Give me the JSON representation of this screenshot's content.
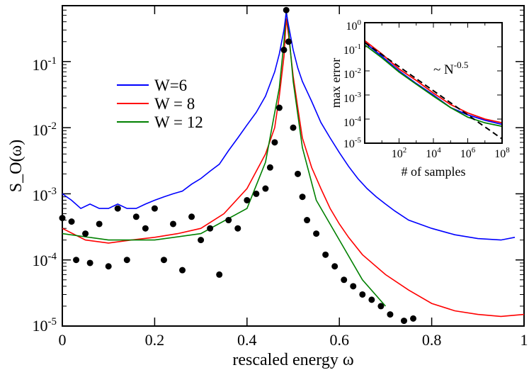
{
  "chart_data": [
    {
      "type": "line",
      "title": "",
      "xlabel": "rescaled energy ω",
      "ylabel": "S_O(ω)",
      "xlim": [
        0,
        1
      ],
      "ylim": [
        1e-05,
        0.7
      ],
      "yscale": "log",
      "x_ticks": [
        0,
        0.2,
        0.4,
        0.6,
        0.8,
        1
      ],
      "x_tick_labels": [
        "0",
        "0.2",
        "0.4",
        "0.6",
        "0.8",
        "1"
      ],
      "y_ticks": [
        1e-05,
        0.0001,
        0.001,
        0.01,
        0.1
      ],
      "y_tick_labels": [
        {
          "base": "10",
          "exp": "-5"
        },
        {
          "base": "10",
          "exp": "-4"
        },
        {
          "base": "10",
          "exp": "-3"
        },
        {
          "base": "10",
          "exp": "-2"
        },
        {
          "base": "10",
          "exp": "-1"
        }
      ],
      "legend": [
        {
          "label": "W=6",
          "color": "#0000ff"
        },
        {
          "label": "W = 8",
          "color": "#ff0000"
        },
        {
          "label": "W = 12",
          "color": "#008000"
        }
      ],
      "series": [
        {
          "name": "W=6",
          "color": "#0000ff",
          "x": [
            0,
            0.02,
            0.04,
            0.06,
            0.08,
            0.1,
            0.12,
            0.14,
            0.16,
            0.18,
            0.2,
            0.22,
            0.24,
            0.26,
            0.28,
            0.3,
            0.32,
            0.34,
            0.36,
            0.38,
            0.4,
            0.42,
            0.44,
            0.46,
            0.47,
            0.48,
            0.485,
            0.49,
            0.5,
            0.51,
            0.52,
            0.54,
            0.56,
            0.58,
            0.6,
            0.62,
            0.64,
            0.66,
            0.68,
            0.7,
            0.72,
            0.75,
            0.8,
            0.85,
            0.9,
            0.95,
            0.98
          ],
          "y": [
            0.001,
            0.0008,
            0.0006,
            0.0007,
            0.0006,
            0.0006,
            0.0007,
            0.0006,
            0.0006,
            0.0007,
            0.0008,
            0.0009,
            0.001,
            0.0011,
            0.0014,
            0.0017,
            0.0022,
            0.0028,
            0.0045,
            0.007,
            0.011,
            0.017,
            0.03,
            0.07,
            0.13,
            0.3,
            0.55,
            0.35,
            0.15,
            0.08,
            0.05,
            0.025,
            0.012,
            0.007,
            0.0042,
            0.0026,
            0.0017,
            0.0012,
            0.0009,
            0.0007,
            0.00055,
            0.0004,
            0.0003,
            0.00024,
            0.00021,
            0.0002,
            0.00022
          ]
        },
        {
          "name": "W = 8",
          "color": "#ff0000",
          "x": [
            0,
            0.05,
            0.1,
            0.15,
            0.2,
            0.25,
            0.3,
            0.35,
            0.4,
            0.44,
            0.46,
            0.47,
            0.48,
            0.485,
            0.49,
            0.5,
            0.51,
            0.52,
            0.54,
            0.56,
            0.58,
            0.6,
            0.62,
            0.65,
            0.7,
            0.75,
            0.8,
            0.85,
            0.9,
            0.95,
            1.0
          ],
          "y": [
            0.0003,
            0.0002,
            0.00018,
            0.0002,
            0.00022,
            0.00025,
            0.0003,
            0.0005,
            0.0012,
            0.004,
            0.01,
            0.03,
            0.12,
            0.45,
            0.25,
            0.06,
            0.02,
            0.007,
            0.0025,
            0.0012,
            0.0006,
            0.00035,
            0.00022,
            0.00012,
            6e-05,
            3.5e-05,
            2.2e-05,
            1.7e-05,
            1.5e-05,
            1.4e-05,
            1.5e-05
          ]
        },
        {
          "name": "W = 12",
          "color": "#008000",
          "x": [
            0,
            0.1,
            0.2,
            0.3,
            0.4,
            0.44,
            0.47,
            0.48,
            0.485,
            0.49,
            0.5,
            0.52,
            0.55,
            0.6,
            0.65,
            0.7
          ],
          "y": [
            0.00025,
            0.0002,
            0.0002,
            0.00025,
            0.0006,
            0.003,
            0.04,
            0.2,
            0.6,
            0.3,
            0.05,
            0.005,
            0.0008,
            0.0002,
            5e-05,
            2e-05
          ]
        },
        {
          "name": "markers",
          "color": "#000000",
          "marker": "circle",
          "x": [
            0.0,
            0.02,
            0.03,
            0.05,
            0.06,
            0.08,
            0.1,
            0.12,
            0.14,
            0.16,
            0.18,
            0.2,
            0.22,
            0.24,
            0.26,
            0.28,
            0.3,
            0.32,
            0.34,
            0.36,
            0.38,
            0.4,
            0.42,
            0.44,
            0.45,
            0.46,
            0.47,
            0.48,
            0.485,
            0.49,
            0.5,
            0.51,
            0.52,
            0.53,
            0.55,
            0.57,
            0.59,
            0.61,
            0.63,
            0.65,
            0.67,
            0.69,
            0.71,
            0.74,
            0.76
          ],
          "y": [
            0.00043,
            0.00038,
            0.0001,
            0.00025,
            9e-05,
            0.00035,
            8e-05,
            0.0006,
            0.0001,
            0.00045,
            0.0003,
            0.0006,
            0.0001,
            0.00035,
            7e-05,
            0.00045,
            0.0002,
            0.0003,
            6e-05,
            0.0004,
            0.0003,
            0.0008,
            0.001,
            0.0012,
            0.0025,
            0.006,
            0.02,
            0.15,
            0.6,
            0.2,
            0.01,
            0.002,
            0.0009,
            0.0004,
            0.00025,
            0.00012,
            8e-05,
            5e-05,
            4e-05,
            3e-05,
            2.5e-05,
            2e-05,
            1.5e-05,
            1.2e-05,
            1.3e-05
          ]
        }
      ]
    },
    {
      "type": "line",
      "title": "",
      "inset": true,
      "xlabel": "# of samples",
      "ylabel": "max error",
      "xscale": "log",
      "yscale": "log",
      "xlim": [
        1,
        100000000
      ],
      "ylim": [
        1e-05,
        1
      ],
      "x_tick_labels": [
        {
          "base": "10",
          "exp": "2"
        },
        {
          "base": "10",
          "exp": "4"
        },
        {
          "base": "10",
          "exp": "6"
        },
        {
          "base": "10",
          "exp": "8"
        }
      ],
      "y_tick_labels": [
        {
          "base": "10",
          "exp": "0"
        },
        {
          "base": "10",
          "exp": "-1"
        },
        {
          "base": "10",
          "exp": "-2"
        },
        {
          "base": "10",
          "exp": "-3"
        },
        {
          "base": "10",
          "exp": "-4"
        },
        {
          "base": "10",
          "exp": "-5"
        }
      ],
      "annotation": {
        "prefix": "~ N",
        "exp": "-0.5"
      },
      "series": [
        {
          "name": "W=6",
          "color": "#0000ff",
          "x": [
            1,
            10,
            100,
            1000,
            10000,
            100000,
            1000000,
            10000000,
            100000000
          ],
          "y": [
            0.15,
            0.04,
            0.01,
            0.003,
            0.001,
            0.0003,
            0.00015,
            9e-05,
            6e-05
          ]
        },
        {
          "name": "W = 8",
          "color": "#ff0000",
          "x": [
            1,
            10,
            100,
            1000,
            10000,
            100000,
            1000000,
            10000000,
            100000000
          ],
          "y": [
            0.18,
            0.05,
            0.012,
            0.004,
            0.0012,
            0.0004,
            0.00018,
            0.0001,
            7e-05
          ]
        },
        {
          "name": "W = 12",
          "color": "#008000",
          "x": [
            1,
            10,
            100,
            1000,
            10000,
            100000,
            1000000,
            10000000,
            100000000
          ],
          "y": [
            0.12,
            0.035,
            0.009,
            0.0028,
            0.0009,
            0.0003,
            0.00012,
            7e-05,
            5e-05
          ]
        },
        {
          "name": "fit",
          "color": "#000000",
          "dashed": true,
          "x": [
            1,
            100000000
          ],
          "y": [
            0.15,
            1.5e-05
          ]
        }
      ]
    }
  ]
}
